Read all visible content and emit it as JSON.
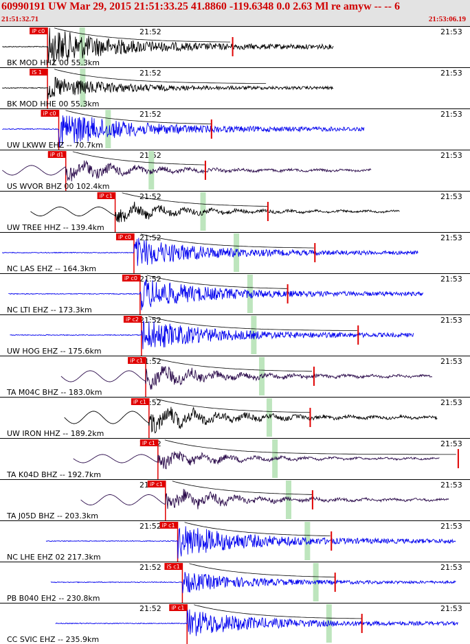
{
  "header": {
    "title": "60990191 UW Mar 29, 2015 21:51:33.25   41.8860 -119.6348  0.0 2.63 Ml re amyw -- --   6",
    "start_time": "21:51:32.71",
    "end_time": "21:53:06.19"
  },
  "colors": {
    "pick": "#e00000",
    "sband": "#bde5bd",
    "black": "#000000",
    "blue": "#0000ee",
    "purple": "#2a0a4a"
  },
  "time_labels": {
    "t1": "21:52",
    "t2": "21:53"
  },
  "traces": [
    {
      "label": "BK MOD HHZ 00 55.3km",
      "pick": "iP c0",
      "color": "black",
      "p": 0.101,
      "s": 0.175,
      "end": 0.71,
      "amp": 1.0,
      "type": "hf",
      "marker": 0.495
    },
    {
      "label": "BK MOD HHE 00 55.3km",
      "pick": "iS 1",
      "color": "black",
      "p": 0.101,
      "s": 0.176,
      "end": 0.71,
      "amp": 0.6,
      "type": "hf",
      "marker": null
    },
    {
      "label": "UW LKWW EHZ -- 70.7km",
      "pick": "iP c0",
      "color": "blue",
      "p": 0.125,
      "s": 0.23,
      "end": 0.775,
      "amp": 0.95,
      "type": "hf",
      "marker": 0.45
    },
    {
      "label": "US WVOR BHZ 00 102.4km",
      "pick": "iP d1",
      "color": "purple",
      "p": 0.14,
      "s": 0.322,
      "end": 0.79,
      "amp": 0.7,
      "type": "lf",
      "marker": 0.437
    },
    {
      "label": "UW TREE HHZ -- 139.4km",
      "pick": "iP c1",
      "color": "black",
      "p": 0.245,
      "s": 0.432,
      "end": 0.85,
      "amp": 0.65,
      "type": "lf",
      "marker": 0.57
    },
    {
      "label": "NC LAS EHZ -- 164.3km",
      "pick": "iP c0",
      "color": "blue",
      "p": 0.285,
      "s": 0.503,
      "end": 0.89,
      "amp": 0.8,
      "type": "hf",
      "marker": 0.67
    },
    {
      "label": "NC LTI EHZ -- 173.3km",
      "pick": "iP c0",
      "color": "blue",
      "p": 0.298,
      "s": 0.532,
      "end": 0.9,
      "amp": 0.85,
      "type": "hf",
      "marker": 0.612
    },
    {
      "label": "UW HOG EHZ -- 175.6km",
      "pick": "iP c2",
      "color": "blue",
      "p": 0.301,
      "s": 0.54,
      "end": 0.88,
      "amp": 0.85,
      "type": "hf",
      "marker": 0.762
    },
    {
      "label": "TA M04C BHZ -- 183.0km",
      "pick": "iP c1",
      "color": "purple",
      "p": 0.31,
      "s": 0.557,
      "end": 0.92,
      "amp": 0.8,
      "type": "lf",
      "marker": 0.668
    },
    {
      "label": "UW IRON HHZ -- 189.2km",
      "pick": "iP c1",
      "color": "black",
      "p": 0.317,
      "s": 0.573,
      "end": 0.93,
      "amp": 0.9,
      "type": "lf",
      "marker": 0.66
    },
    {
      "label": "TA K04D BHZ -- 192.7km",
      "pick": "iP c1",
      "color": "purple",
      "p": 0.336,
      "s": 0.585,
      "end": 0.935,
      "amp": 0.6,
      "type": "lf",
      "marker": 0.975
    },
    {
      "label": "TA J05D BHZ -- 203.3km",
      "pick": "iP c1",
      "color": "purple",
      "p": 0.352,
      "s": 0.614,
      "end": 0.955,
      "amp": 0.75,
      "type": "lf",
      "marker": 0.665
    },
    {
      "label": "NC LHE EHZ 02 217.3km",
      "pick": "iP c1",
      "color": "blue",
      "p": 0.378,
      "s": 0.654,
      "end": 0.97,
      "amp": 0.9,
      "type": "hf",
      "marker": 0.705
    },
    {
      "label": "PB B040 EH2 -- 230.8km",
      "pick": "iS c1",
      "color": "blue",
      "p": 0.388,
      "s": 0.672,
      "end": 0.97,
      "amp": 0.55,
      "type": "hf",
      "marker": 0.713
    },
    {
      "label": "CC SVIC EHZ -- 235.9km",
      "pick": "iP c1",
      "color": "blue",
      "p": 0.398,
      "s": 0.7,
      "end": 0.975,
      "amp": 0.75,
      "type": "hf",
      "marker": 0.77
    }
  ]
}
